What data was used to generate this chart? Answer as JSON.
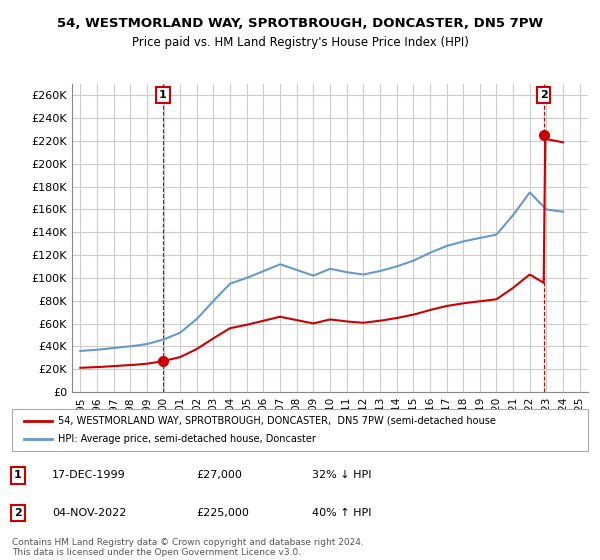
{
  "title1": "54, WESTMORLAND WAY, SPROTBROUGH, DONCASTER, DN5 7PW",
  "title2": "Price paid vs. HM Land Registry's House Price Index (HPI)",
  "ylabel_ticks": [
    "£0",
    "£20K",
    "£40K",
    "£60K",
    "£80K",
    "£100K",
    "£120K",
    "£140K",
    "£160K",
    "£180K",
    "£200K",
    "£220K",
    "£240K",
    "£260K"
  ],
  "ytick_vals": [
    0,
    20000,
    40000,
    60000,
    80000,
    100000,
    120000,
    140000,
    160000,
    180000,
    200000,
    220000,
    240000,
    260000
  ],
  "xlim_start": 1994.5,
  "xlim_end": 2025.5,
  "ylim_min": 0,
  "ylim_max": 270000,
  "sale1_year": 1999.96,
  "sale1_price": 27000,
  "sale2_year": 2022.84,
  "sale2_price": 225000,
  "sale1_label": "1",
  "sale2_label": "2",
  "legend_line1": "54, WESTMORLAND WAY, SPROTBROUGH, DONCASTER,  DN5 7PW (semi-detached house",
  "legend_line2": "HPI: Average price, semi-detached house, Doncaster",
  "table_row1": [
    "1",
    "17-DEC-1999",
    "£27,000",
    "32% ↓ HPI"
  ],
  "table_row2": [
    "2",
    "04-NOV-2022",
    "£225,000",
    "40% ↑ HPI"
  ],
  "footnote": "Contains HM Land Registry data © Crown copyright and database right 2024.\nThis data is licensed under the Open Government Licence v3.0.",
  "hpi_color": "#6699cc",
  "price_color": "#cc0000",
  "vline_color": "#cc0000",
  "grid_color": "#cccccc",
  "bg_color": "#ffffff"
}
